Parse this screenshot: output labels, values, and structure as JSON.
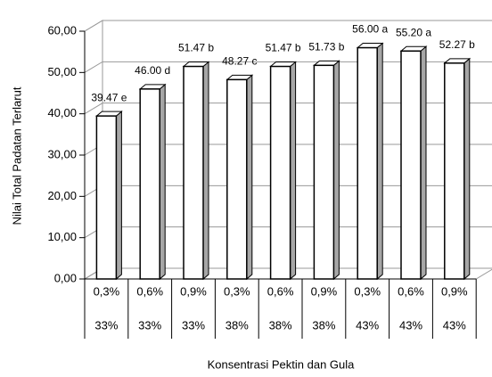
{
  "chart_data": {
    "type": "bar3d",
    "x_label": "Konsentrasi Pektin dan Gula",
    "y_label": "Nilai Total Padatan Terlarut",
    "categories": [
      [
        "0,3%",
        "33%"
      ],
      [
        "0,6%",
        "33%"
      ],
      [
        "0,9%",
        "33%"
      ],
      [
        "0,3%",
        "38%"
      ],
      [
        "0,6%",
        "38%"
      ],
      [
        "0,9%",
        "38%"
      ],
      [
        "0,3%",
        "43%"
      ],
      [
        "0,6%",
        "43%"
      ],
      [
        "0,9%",
        "43%"
      ]
    ],
    "values": [
      39.47,
      46.0,
      51.47,
      48.27,
      51.47,
      51.73,
      56.0,
      55.2,
      52.27
    ],
    "value_labels": [
      "39.47 e",
      "46.00 d",
      "51.47 b",
      "48.27 c",
      "51.47 b",
      "51.73 b",
      "56.00 a",
      "55.20 a",
      "52.27 b"
    ],
    "color": "#ffffff",
    "side_color": "#a6a6a6",
    "ylim": [
      0,
      60
    ],
    "yticks": [
      {
        "value": 0,
        "label": "0,00"
      },
      {
        "value": 10,
        "label": "10,00"
      },
      {
        "value": 20,
        "label": "20,00"
      },
      {
        "value": 30,
        "label": "30,00"
      },
      {
        "value": 40,
        "label": "40,00"
      },
      {
        "value": 50,
        "label": "50,00"
      },
      {
        "value": 60,
        "label": "60,00"
      }
    ],
    "grid": true
  }
}
